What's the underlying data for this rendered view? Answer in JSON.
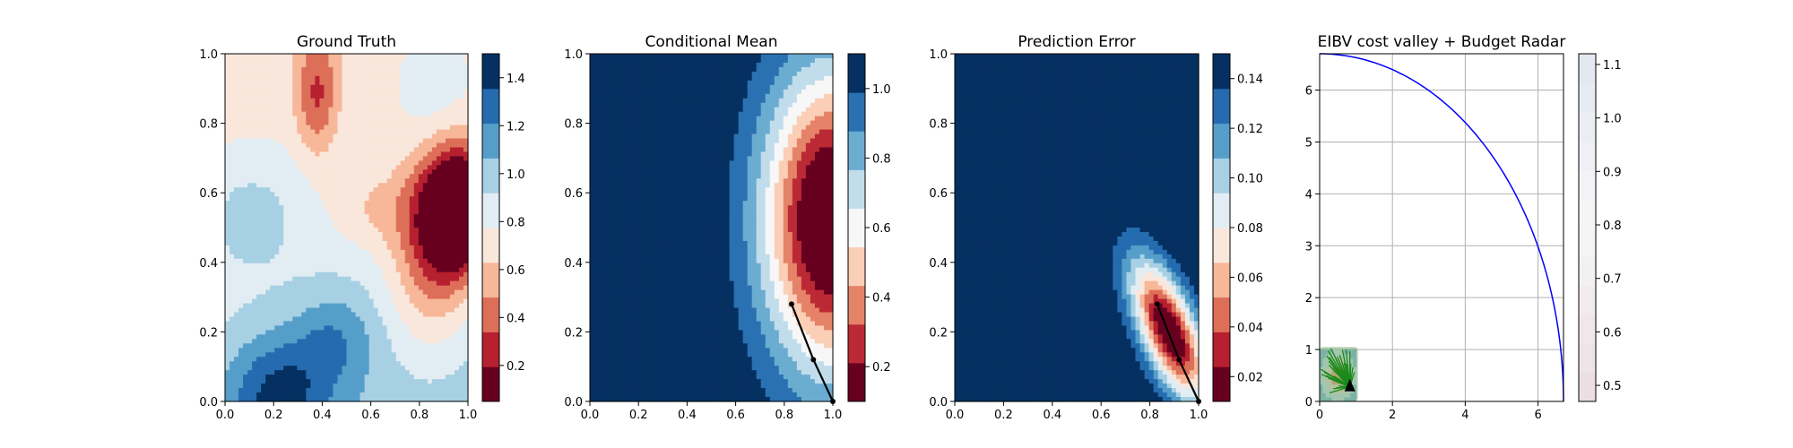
{
  "chart_data": [
    {
      "type": "heatmap",
      "title": "Ground Truth",
      "xlabel": "",
      "ylabel": "",
      "xlim": [
        0,
        1
      ],
      "ylim": [
        0,
        1
      ],
      "x_ticks": [
        "0.0",
        "0.2",
        "0.4",
        "0.6",
        "0.8",
        "1.0"
      ],
      "y_ticks": [
        "0.0",
        "0.2",
        "0.4",
        "0.6",
        "0.8",
        "1.0"
      ],
      "colormap": "RdBu",
      "colorbar_ticks": [
        "0.2",
        "0.4",
        "0.6",
        "0.8",
        "1.0",
        "1.2",
        "1.4"
      ],
      "colorbar_range": [
        0.05,
        1.5
      ],
      "field": "smooth spatial field: lowest values (~0.1) near x=0.95,y=0.55; high values (~1.4) near x=0.25,y=0.05"
    },
    {
      "type": "heatmap",
      "title": "Conditional Mean",
      "xlabel": "",
      "ylabel": "",
      "xlim": [
        0,
        1
      ],
      "ylim": [
        0,
        1
      ],
      "x_ticks": [
        "0.0",
        "0.2",
        "0.4",
        "0.6",
        "0.8",
        "1.0"
      ],
      "y_ticks": [
        "0.0",
        "0.2",
        "0.4",
        "0.6",
        "0.8",
        "1.0"
      ],
      "colormap": "RdBu",
      "colorbar_ticks": [
        "0.2",
        "0.4",
        "0.6",
        "0.8",
        "1.0"
      ],
      "colorbar_range": [
        0.1,
        1.1
      ],
      "path": [
        [
          1.0,
          0.0
        ],
        [
          0.92,
          0.12
        ],
        [
          0.83,
          0.28
        ]
      ]
    },
    {
      "type": "heatmap",
      "title": "Prediction Error",
      "xlabel": "",
      "ylabel": "",
      "xlim": [
        0,
        1
      ],
      "ylim": [
        0,
        1
      ],
      "x_ticks": [
        "0.0",
        "0.2",
        "0.4",
        "0.6",
        "0.8",
        "1.0"
      ],
      "y_ticks": [
        "0.0",
        "0.2",
        "0.4",
        "0.6",
        "0.8",
        "1.0"
      ],
      "colormap": "RdBu",
      "colorbar_ticks": [
        "0.02",
        "0.04",
        "0.06",
        "0.08",
        "0.10",
        "0.12",
        "0.14"
      ],
      "colorbar_range": [
        0.01,
        0.15
      ],
      "path": [
        [
          1.0,
          0.0
        ],
        [
          0.92,
          0.12
        ],
        [
          0.83,
          0.28
        ]
      ]
    },
    {
      "type": "line",
      "title": "EIBV cost valley + Budget Radar",
      "xlabel": "",
      "ylabel": "",
      "xlim": [
        0,
        6.7
      ],
      "ylim": [
        0,
        6.7
      ],
      "x_ticks": [
        0,
        2,
        4,
        6
      ],
      "y_ticks": [
        0,
        1,
        2,
        3,
        4,
        5,
        6
      ],
      "grid": true,
      "radar_radius": 6.7,
      "radar_color": "#0000ff",
      "marker": [
        0.83,
        0.28
      ],
      "colorbar_ticks": [
        "0.5",
        "0.6",
        "0.7",
        "0.8",
        "0.9",
        "1.0",
        "1.1"
      ],
      "colorbar_range": [
        0.47,
        1.12
      ]
    }
  ]
}
